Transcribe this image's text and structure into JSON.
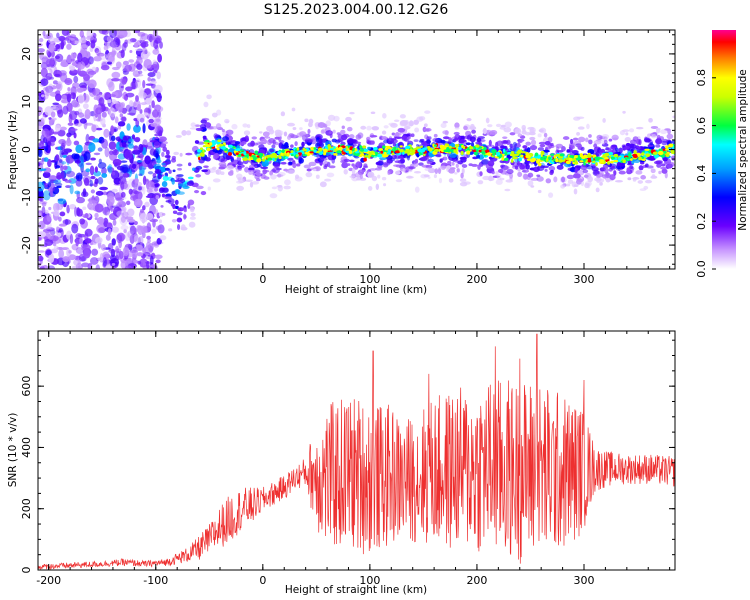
{
  "figure_title": "S125.2023.004.00.12.G26",
  "colors": {
    "snr_line": "#ee3030",
    "spectrogram_palette": [
      "#ffffff",
      "#e0c8ff",
      "#a64dff",
      "#5a00ff",
      "#0000ff",
      "#00ffff",
      "#00ff00",
      "#ffff00",
      "#ff0000",
      "#ff0090"
    ]
  },
  "chart_data": [
    {
      "type": "heatmap",
      "title": "",
      "xlabel": "Height of straight line (km)",
      "ylabel": "Frequency (Hz)",
      "xlim": [
        -210,
        385
      ],
      "ylim": [
        -25,
        25
      ],
      "xticks": [
        -200,
        -100,
        0,
        100,
        200,
        300
      ],
      "yticks": [
        -20,
        -10,
        0,
        10,
        20
      ],
      "colorbar": {
        "label": "Normalized spectral amplitude",
        "range": [
          0,
          1
        ],
        "ticks": [
          0.0,
          0.2,
          0.4,
          0.6,
          0.8
        ]
      },
      "ridge": {
        "x": [
          -210,
          -180,
          -150,
          -130,
          -115,
          -100,
          -90,
          -80,
          -70,
          -60,
          -50,
          -40,
          -20,
          0,
          20,
          50,
          80,
          100,
          130,
          160,
          190,
          220,
          240,
          260,
          280,
          300,
          330,
          360,
          385
        ],
        "y": [
          -4,
          -6,
          -3,
          -1,
          0,
          -2,
          -6,
          -9,
          -7,
          -1,
          1,
          1,
          -1,
          -2,
          -1,
          0,
          0,
          -1,
          0,
          0,
          0,
          -1,
          -1,
          -2,
          -2,
          -2,
          -2,
          -1,
          0
        ]
      }
    },
    {
      "type": "line",
      "title": "",
      "xlabel": "Height of straight line (km)",
      "ylabel": "SNR (10 * v/v)",
      "xlim": [
        -210,
        385
      ],
      "ylim": [
        0,
        780
      ],
      "xticks": [
        -200,
        -100,
        0,
        100,
        200,
        300
      ],
      "yticks": [
        0,
        200,
        400,
        600
      ],
      "envelope": {
        "x": [
          -210,
          -180,
          -150,
          -130,
          -110,
          -90,
          -70,
          -60,
          -50,
          -40,
          -30,
          -20,
          -10,
          0,
          10,
          20,
          30,
          40,
          50,
          60,
          70,
          80,
          90,
          100,
          110,
          120,
          130,
          140,
          150,
          160,
          170,
          180,
          190,
          200,
          210,
          220,
          230,
          240,
          250,
          260,
          270,
          280,
          290,
          300,
          310,
          320,
          340,
          360,
          385
        ],
        "mean": [
          10,
          15,
          20,
          25,
          20,
          25,
          50,
          70,
          100,
          140,
          170,
          200,
          210,
          230,
          250,
          270,
          300,
          320,
          310,
          300,
          310,
          320,
          310,
          300,
          300,
          310,
          290,
          300,
          310,
          320,
          320,
          330,
          330,
          330,
          340,
          330,
          330,
          320,
          330,
          320,
          320,
          320,
          320,
          330,
          330,
          330,
          330,
          330,
          320
        ],
        "amp": [
          8,
          10,
          10,
          12,
          10,
          12,
          25,
          40,
          50,
          70,
          80,
          70,
          60,
          40,
          40,
          40,
          40,
          50,
          180,
          240,
          250,
          260,
          260,
          250,
          240,
          230,
          200,
          210,
          230,
          250,
          260,
          270,
          270,
          280,
          290,
          300,
          300,
          300,
          300,
          300,
          280,
          260,
          240,
          200,
          80,
          60,
          50,
          50,
          50
        ]
      },
      "peaks": [
        [
          103,
          715
        ],
        [
          217,
          730
        ],
        [
          256,
          770
        ],
        [
          155,
          640
        ],
        [
          240,
          690
        ],
        [
          300,
          620
        ]
      ]
    }
  ]
}
